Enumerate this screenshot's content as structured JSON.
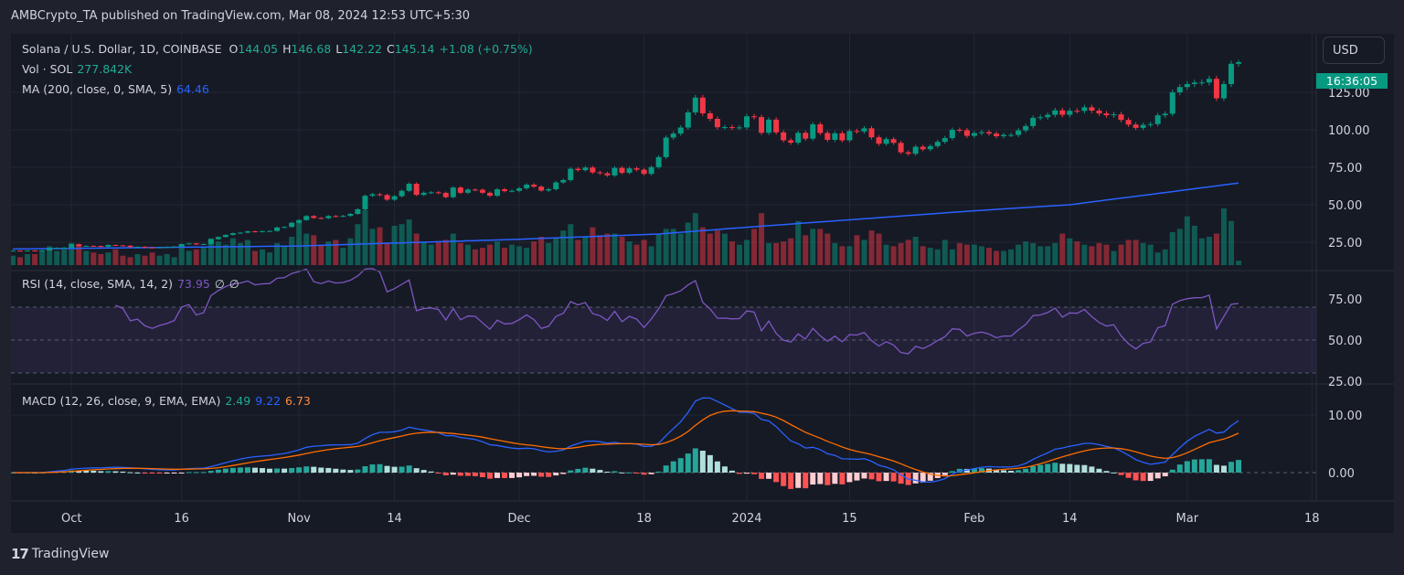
{
  "header": {
    "publisher_line": "AMBCrypto_TA published on TradingView.com, Mar 08, 2024 12:53 UTC+5:30"
  },
  "legend": {
    "symbol": "Solana / U.S. Dollar, 1D, COINBASE",
    "o_label": "O",
    "open": "144.05",
    "h_label": "H",
    "high": "146.68",
    "l_label": "L",
    "low": "142.22",
    "c_label": "C",
    "close": "145.14",
    "change": "+1.08 (+0.75%)",
    "vol_label": "Vol · SOL",
    "vol_value": "277.842K",
    "ma_label": "MA (200, close, 0, SMA, 5)",
    "ma_value": "64.46",
    "rsi_label": "RSI (14, close, SMA, 14, 2)",
    "rsi_value": "73.95",
    "rsi_na1": "∅",
    "rsi_na2": "∅",
    "macd_label": "MACD (12, 26, close, 9, EMA, EMA)",
    "macd_hist": "2.49",
    "macd_value": "9.22",
    "macd_signal": "6.73"
  },
  "price_axis": {
    "currency_button": "USD",
    "countdown": "16:36:05"
  },
  "footer": {
    "logo_mark": "17",
    "logo_text": "TradingView"
  },
  "colors": {
    "up": "#089981",
    "down": "#f23645",
    "ma": "#2962ff",
    "rsi": "#7e57c2",
    "macd": "#2962ff",
    "signal": "#ff6d00",
    "hist_up_strong": "#26a69a",
    "hist_up_weak": "#b2dfdb",
    "hist_down_weak": "#ffcdd2",
    "hist_down_strong": "#ff5252"
  },
  "chart_data": {
    "type": "candlestick",
    "interval": "1D",
    "start_date": "2023-09-23",
    "last_candle": {
      "open": 144.05,
      "high": 146.68,
      "low": 142.22,
      "close": 145.14
    },
    "close": [
      19.4,
      19.3,
      19.5,
      19.4,
      19.6,
      21.0,
      21.3,
      21.4,
      23.7,
      22.4,
      22.6,
      22.5,
      22.0,
      23.2,
      22.9,
      22.7,
      21.8,
      22.0,
      21.5,
      21.3,
      21.6,
      21.8,
      22.1,
      23.8,
      24.2,
      23.5,
      23.8,
      27.0,
      28.5,
      29.9,
      31.0,
      31.4,
      32.3,
      32.0,
      32.4,
      32.5,
      34.9,
      35.2,
      38.0,
      39.8,
      42.5,
      41.2,
      41.0,
      42.5,
      42.3,
      42.6,
      43.9,
      47.0,
      56.0,
      57.0,
      56.5,
      53.4,
      55.7,
      59.3,
      64.0,
      56.6,
      58.0,
      58.3,
      57.9,
      55.1,
      61.5,
      58.0,
      60.1,
      60.0,
      58.0,
      56.0,
      60.3,
      59.1,
      59.3,
      61.0,
      63.4,
      62.1,
      59.5,
      60.4,
      64.9,
      66.5,
      74.0,
      73.1,
      74.8,
      71.6,
      71.0,
      69.6,
      74.6,
      71.3,
      74.3,
      73.4,
      70.6,
      75.1,
      81.8,
      94.8,
      97.5,
      101.5,
      111.6,
      121.5,
      111.0,
      107.3,
      101.7,
      101.8,
      101.4,
      101.6,
      109.0,
      108.5,
      98.0,
      106.8,
      98.3,
      93.0,
      91.4,
      98.0,
      94.1,
      103.7,
      97.9,
      93.3,
      97.7,
      93.0,
      99.2,
      98.9,
      101.0,
      95.0,
      90.7,
      93.8,
      91.3,
      85.0,
      84.0,
      88.7,
      87.0,
      89.1,
      92.0,
      94.5,
      100.0,
      99.7,
      96.0,
      97.8,
      98.5,
      97.5,
      95.7,
      96.6,
      96.6,
      99.6,
      102.5,
      108.0,
      108.4,
      110.0,
      113.0,
      110.0,
      112.7,
      112.6,
      115.0,
      112.8,
      110.9,
      109.7,
      110.3,
      106.6,
      103.5,
      101.3,
      103.3,
      103.8,
      109.7,
      110.7,
      125.0,
      128.5,
      130.5,
      131.5,
      131.6,
      134.0,
      121.0,
      130.5,
      144.05,
      145.14
    ],
    "volume_k": [
      600,
      500,
      700,
      700,
      900,
      1200,
      900,
      1000,
      1400,
      1300,
      900,
      800,
      700,
      800,
      1000,
      600,
      500,
      700,
      600,
      800,
      600,
      700,
      500,
      1300,
      900,
      1000,
      1100,
      1700,
      1500,
      1300,
      1700,
      1400,
      1600,
      900,
      1000,
      800,
      1400,
      1200,
      1800,
      2800,
      2000,
      1900,
      1300,
      1500,
      1600,
      1100,
      1700,
      2600,
      3500,
      2300,
      2400,
      1400,
      2500,
      2600,
      2900,
      2000,
      1500,
      1300,
      1500,
      1600,
      2000,
      1400,
      1300,
      1000,
      1100,
      1300,
      1500,
      1100,
      1300,
      1200,
      1100,
      1500,
      1800,
      1400,
      1700,
      2200,
      2600,
      1600,
      1800,
      2400,
      1900,
      2000,
      2000,
      1800,
      1500,
      1300,
      1600,
      1200,
      2000,
      2300,
      2300,
      2000,
      2700,
      3300,
      2400,
      2000,
      2200,
      2000,
      1500,
      1300,
      1600,
      2300,
      3300,
      1400,
      1400,
      1500,
      1700,
      2800,
      1900,
      2300,
      2300,
      2000,
      1400,
      1200,
      1200,
      1900,
      1600,
      2200,
      2000,
      1300,
      1200,
      1400,
      1600,
      1800,
      1200,
      1100,
      1000,
      1600,
      1000,
      1400,
      1300,
      1300,
      1200,
      1100,
      900,
      900,
      1000,
      1300,
      1500,
      1400,
      1200,
      1200,
      1400,
      2000,
      1700,
      1500,
      1300,
      1200,
      1400,
      1300,
      900,
      1300,
      1600,
      1600,
      1400,
      1300,
      800,
      1000,
      2100,
      2300,
      3100,
      2500,
      1700,
      1800,
      2000,
      3600,
      2800,
      277.842
    ],
    "ma200_points": [
      [
        "2023-09-23",
        20.5
      ],
      [
        "2023-11-01",
        22.5
      ],
      [
        "2023-12-01",
        27
      ],
      [
        "2023-12-20",
        30.5
      ],
      [
        "2024-01-01",
        35
      ],
      [
        "2024-02-01",
        46
      ],
      [
        "2024-02-14",
        50
      ],
      [
        "2024-03-08",
        64.46
      ]
    ],
    "price_ticks": [
      {
        "value": 125,
        "label": "125.00"
      },
      {
        "value": 100,
        "label": "100.00"
      },
      {
        "value": 75,
        "label": "75.00"
      },
      {
        "value": 50,
        "label": "50.00"
      },
      {
        "value": 25,
        "label": "25.00"
      }
    ],
    "rsi_ticks": [
      {
        "value": 75,
        "label": "75.00"
      },
      {
        "value": 50,
        "label": "50.00"
      },
      {
        "value": 25,
        "label": "25.00"
      }
    ],
    "rsi_bands": [
      70,
      50,
      30
    ],
    "macd_ticks": [
      {
        "value": 10,
        "label": "10.00"
      },
      {
        "value": 0,
        "label": "0.00"
      }
    ],
    "time_ticks": [
      {
        "date": "2023-10-01",
        "label": "Oct"
      },
      {
        "date": "2023-10-16",
        "label": "16"
      },
      {
        "date": "2023-11-01",
        "label": "Nov"
      },
      {
        "date": "2023-11-14",
        "label": "14"
      },
      {
        "date": "2023-12-01",
        "label": "Dec"
      },
      {
        "date": "2023-12-18",
        "label": "18"
      },
      {
        "date": "2024-01-01",
        "label": "2024"
      },
      {
        "date": "2024-01-15",
        "label": "15"
      },
      {
        "date": "2024-02-01",
        "label": "Feb"
      },
      {
        "date": "2024-02-14",
        "label": "14"
      },
      {
        "date": "2024-03-01",
        "label": "Mar"
      },
      {
        "date": "2024-03-18",
        "label": "18"
      }
    ]
  }
}
